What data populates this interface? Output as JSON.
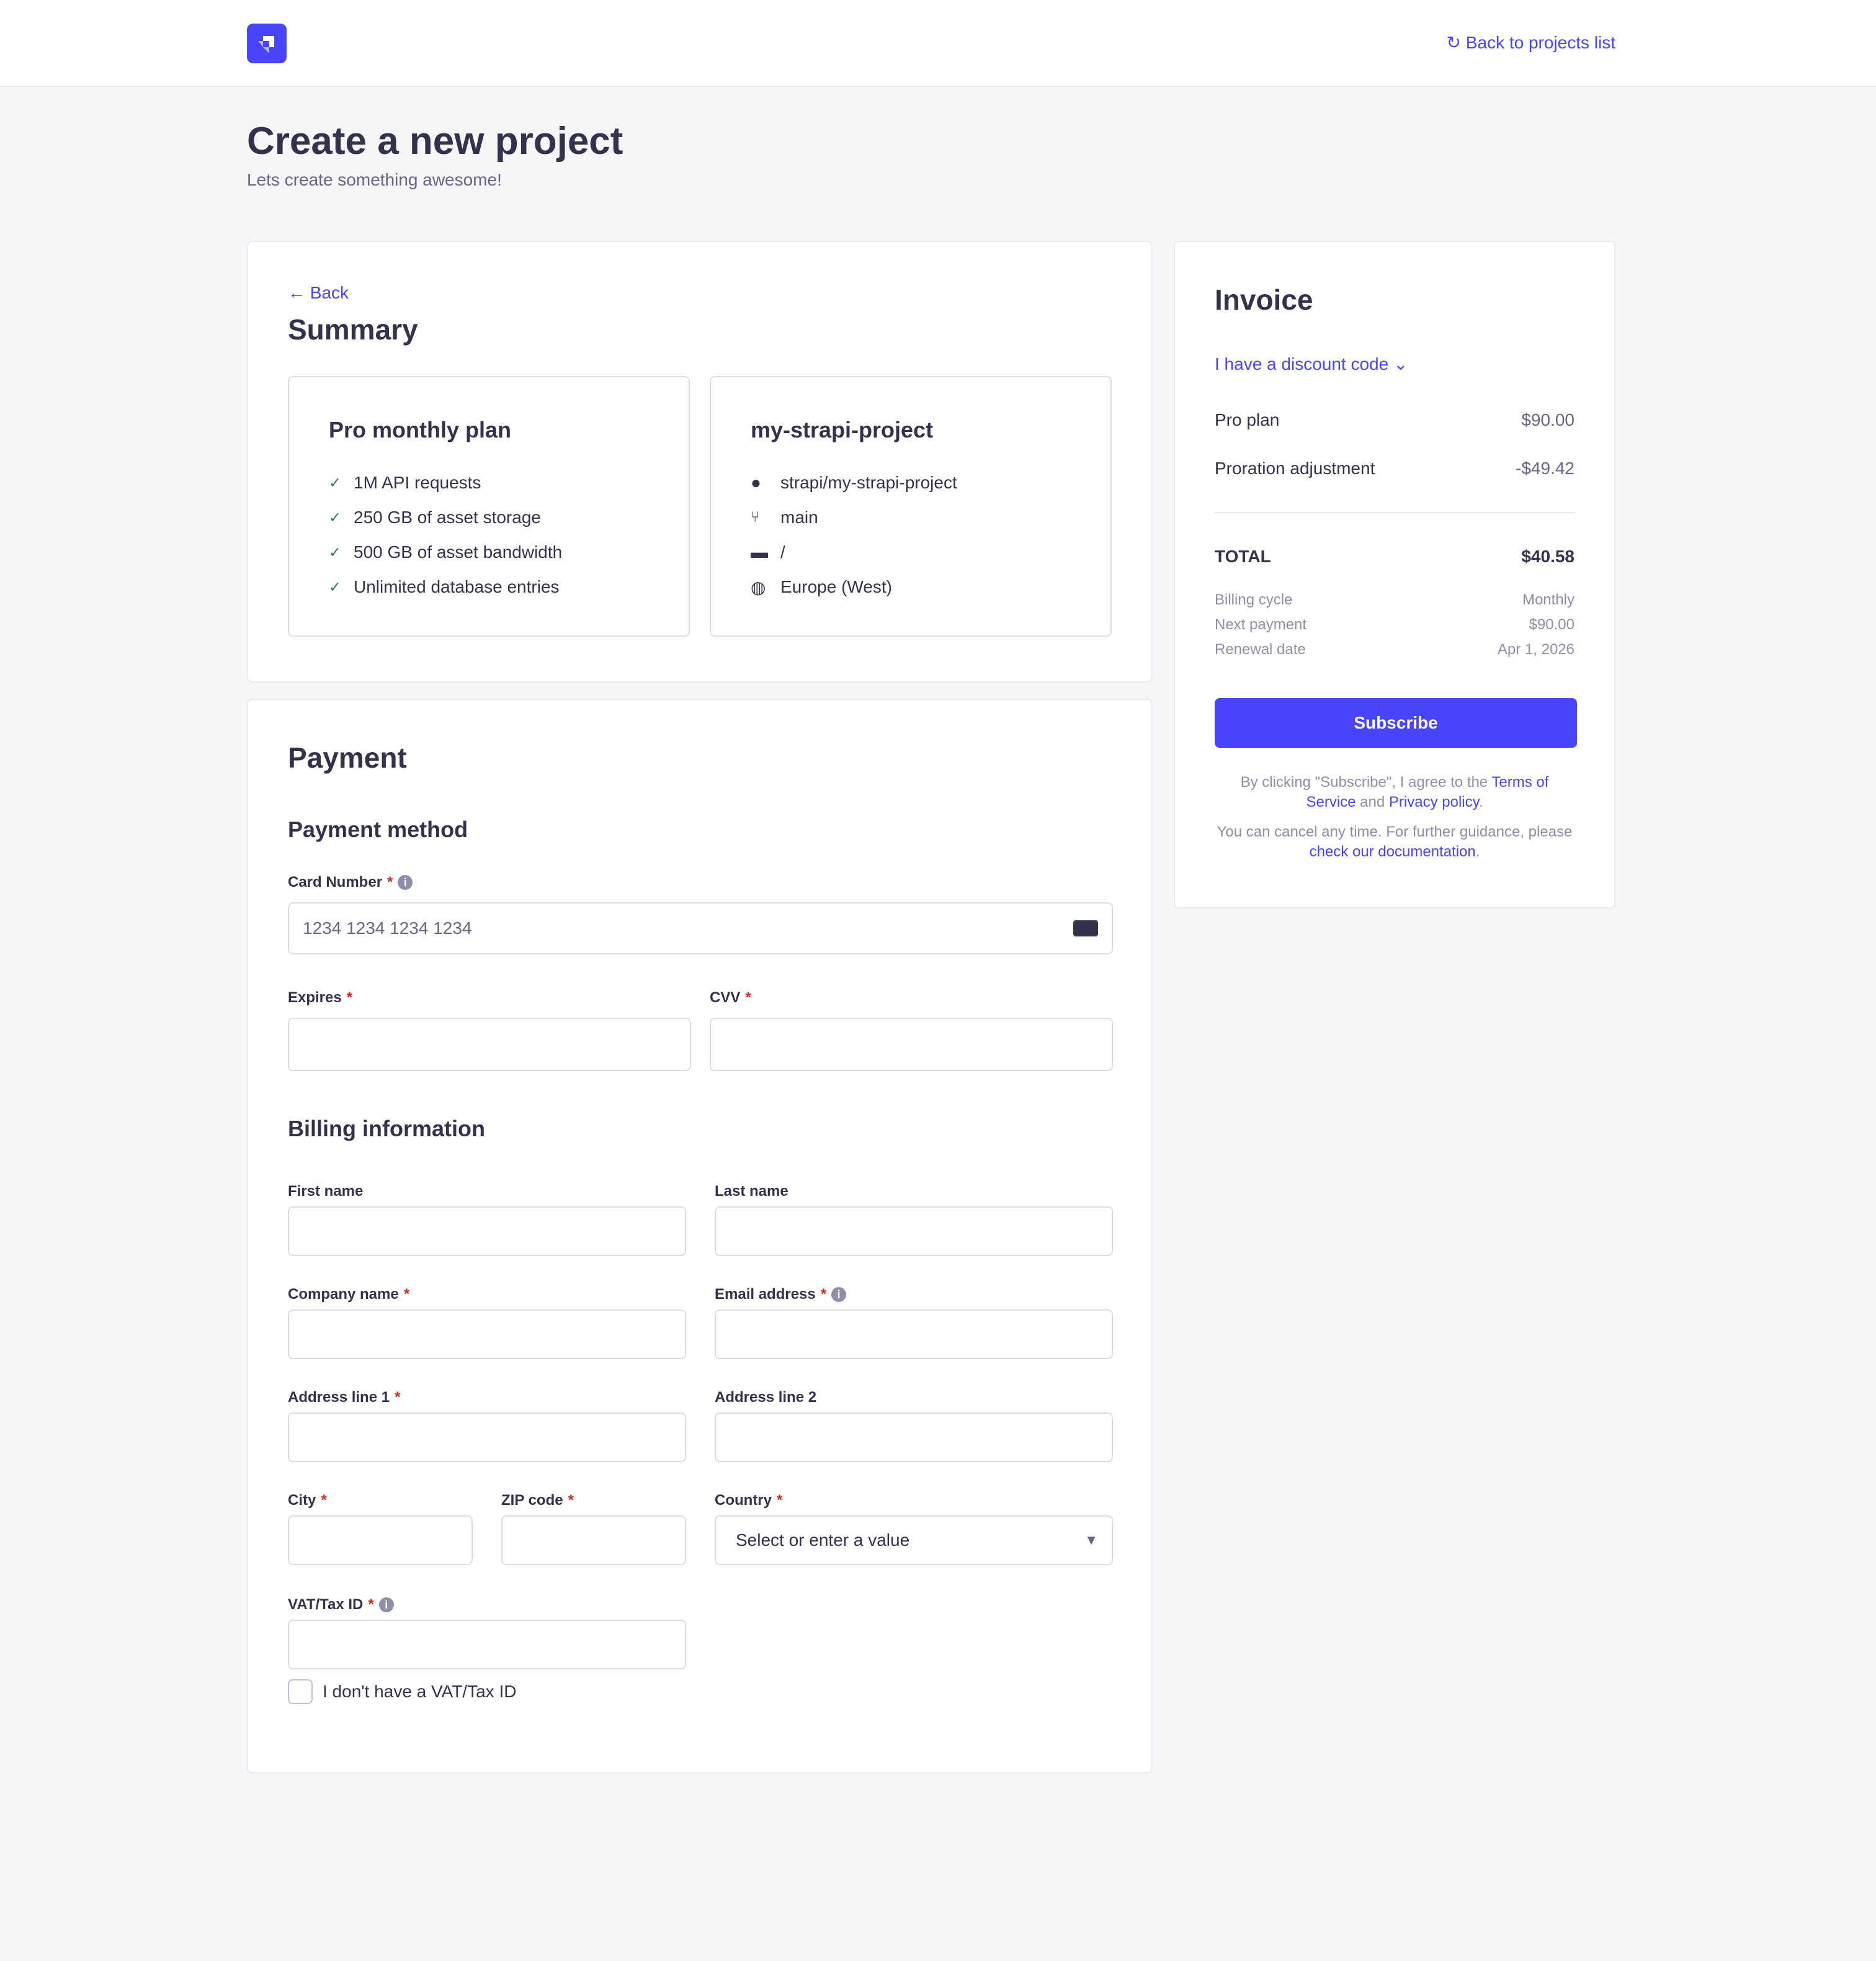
{
  "header": {
    "back_link": "Back to projects list"
  },
  "page": {
    "title": "Create a new project",
    "subtitle": "Lets create something awesome!"
  },
  "summary": {
    "back": "Back",
    "title": "Summary",
    "plan": {
      "title": "Pro monthly plan",
      "features": [
        "1M API requests",
        "250 GB of asset storage",
        "500 GB of asset bandwidth",
        "Unlimited database entries"
      ]
    },
    "project": {
      "title": "my-strapi-project",
      "repo": "strapi/my-strapi-project",
      "branch": "main",
      "directory": "/",
      "region": "Europe (West)"
    }
  },
  "payment": {
    "title": "Payment",
    "method_title": "Payment method",
    "card_label": "Card Number",
    "card_placeholder": "1234 1234 1234 1234",
    "expires_label": "Expires",
    "cvv_label": "CVV",
    "billing_title": "Billing information",
    "first_name": "First name",
    "last_name": "Last name",
    "company": "Company name",
    "email": "Email address",
    "address1": "Address line 1",
    "address2": "Address line 2",
    "city": "City",
    "zip": "ZIP code",
    "country": "Country",
    "country_placeholder": "Select or enter a value",
    "vat": "VAT/Tax ID",
    "no_vat": "I don't have a VAT/Tax ID",
    "required_mark": "*"
  },
  "invoice": {
    "title": "Invoice",
    "discount": "I have a discount code",
    "lines": [
      {
        "label": "Pro plan",
        "value": "$90.00"
      },
      {
        "label": "Proration adjustment",
        "value": "-$49.42"
      }
    ],
    "total_label": "TOTAL",
    "total_value": "$40.58",
    "details": [
      {
        "label": "Billing cycle",
        "value": "Monthly"
      },
      {
        "label": "Next payment",
        "value": "$90.00"
      },
      {
        "label": "Renewal date",
        "value": "Apr 1, 2026"
      }
    ],
    "subscribe": "Subscribe",
    "legal_1": "By clicking \"Subscribe\", I agree to the ",
    "terms": "Terms of Service",
    "and": " and ",
    "privacy": "Privacy policy",
    "period": ".",
    "cancel_1": "You can cancel any time. For further guidance, please ",
    "docs": "check our documentation"
  },
  "colors": {
    "primary": "#4945ff",
    "background": "#f6f6f9",
    "required": "#d02b20",
    "success": "#328048"
  }
}
